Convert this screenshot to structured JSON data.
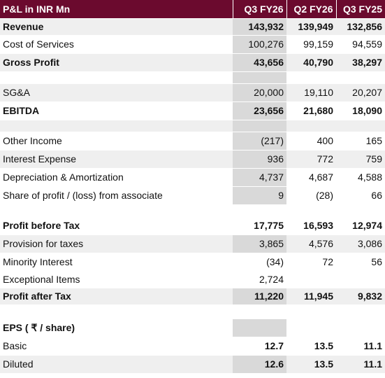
{
  "table": {
    "header": {
      "label": "P&L in INR Mn",
      "columns": [
        "Q3 FY26",
        "Q2 FY26",
        "Q3 FY25"
      ]
    },
    "rows": [
      {
        "label": "Revenue",
        "values": [
          "143,932",
          "139,949",
          "132,856"
        ]
      },
      {
        "label": "Cost of Services",
        "values": [
          "100,276",
          "99,159",
          "94,559"
        ]
      },
      {
        "label": "Gross Profit",
        "values": [
          "43,656",
          "40,790",
          "38,297"
        ]
      },
      {
        "label": "",
        "values": [
          "",
          "",
          ""
        ]
      },
      {
        "label": "SG&A",
        "values": [
          "20,000",
          "19,110",
          "20,207"
        ]
      },
      {
        "label": "EBITDA",
        "values": [
          "23,656",
          "21,680",
          "18,090"
        ]
      },
      {
        "label": "",
        "values": [
          "",
          "",
          ""
        ]
      },
      {
        "label": "Other Income",
        "values": [
          "(217)",
          "400",
          "165"
        ]
      },
      {
        "label": "Interest Expense",
        "values": [
          "936",
          "772",
          "759"
        ]
      },
      {
        "label": "Depreciation & Amortization",
        "values": [
          "4,737",
          "4,687",
          "4,588"
        ]
      },
      {
        "label": "Share of profit / (loss) from associate",
        "values": [
          "9",
          "(28)",
          "66"
        ]
      },
      {
        "label": "",
        "values": [
          "",
          "",
          ""
        ]
      },
      {
        "label": "Profit before Tax",
        "values": [
          "17,775",
          "16,593",
          "12,974"
        ]
      },
      {
        "label": "Provision for taxes",
        "values": [
          "3,865",
          "4,576",
          "3,086"
        ]
      },
      {
        "label": "Minority Interest",
        "values": [
          "(34)",
          "72",
          "56"
        ]
      },
      {
        "label": "Exceptional Items",
        "values": [
          "2,724",
          "",
          ""
        ]
      },
      {
        "label": "Profit after Tax",
        "values": [
          "11,220",
          "11,945",
          "9,832"
        ]
      },
      {
        "label": "",
        "values": [
          "",
          "",
          ""
        ]
      },
      {
        "label": "EPS ( ₹ / share)",
        "values": [
          "",
          "",
          ""
        ]
      },
      {
        "label": "Basic",
        "values": [
          "12.7",
          "13.5",
          "11.1"
        ]
      },
      {
        "label": "Diluted",
        "values": [
          "12.6",
          "13.5",
          "11.1"
        ]
      }
    ]
  },
  "colors": {
    "header_bg": "#6b0a2e",
    "header_text": "#ffffff",
    "row_shade": "#efefef",
    "current_col": "#d9d9d9"
  }
}
